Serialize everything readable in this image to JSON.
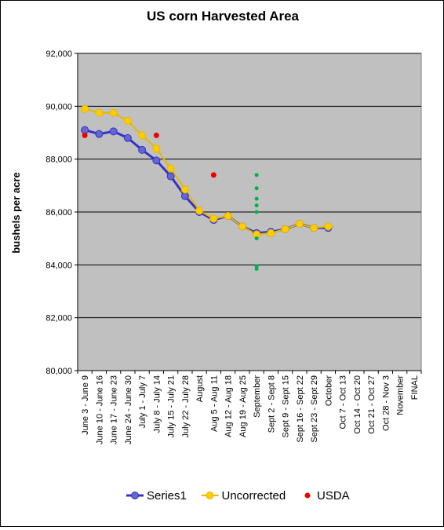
{
  "chart_data": {
    "type": "line",
    "title": "US corn Harvested Area",
    "ylabel": "bushels per acre",
    "xlabel": "",
    "ylim": [
      80000,
      92000
    ],
    "yticks": [
      "80,000",
      "82,000",
      "84,000",
      "86,000",
      "88,000",
      "90,000",
      "92,000"
    ],
    "ytick_values": [
      80000,
      82000,
      84000,
      86000,
      88000,
      90000,
      92000
    ],
    "grid": "horizontal",
    "legend_position": "bottom",
    "plot_background": "#c0c0c0",
    "categories": [
      "June 3 - June 9",
      "June 10 - June 16",
      "June 17 - June 23",
      "June 24 - June 30",
      "July 1 - July 7",
      "July 8 - July 14",
      "July 15 - July 21",
      "July 22 - July 28",
      "August",
      "Aug 5 - Aug 11",
      "Aug 12 - Aug 18",
      "Aug 19 - Aug 25",
      "September",
      "Sept 2 - Sept 8",
      "Sept 9 - Sept 15",
      "Sept 16 - Sept 22",
      "Sept 23 - Sept 29",
      "October",
      "Oct 7 - Oct 13",
      "Oct 14 - Oct 20",
      "Oct 21 - Oct 27",
      "Oct 28 - Nov 3",
      "November",
      "FINAL"
    ],
    "series": [
      {
        "name": "Series1",
        "color": "#3333cc",
        "marker_fill": "#6666cc",
        "line_width": 3,
        "values": [
          89100,
          88950,
          89050,
          88800,
          88350,
          87950,
          87350,
          86600,
          86000,
          85700,
          85850,
          85450,
          85200,
          85250,
          85350,
          85550,
          85400,
          85400,
          null,
          null,
          null,
          null,
          null,
          null
        ]
      },
      {
        "name": "Uncorrected",
        "color": "#e6b800",
        "marker_fill": "#ffcc00",
        "line_width": 2,
        "values": [
          89900,
          89750,
          89750,
          89450,
          88900,
          88400,
          87650,
          86850,
          86050,
          85750,
          85850,
          85450,
          85150,
          85200,
          85350,
          85550,
          85400,
          85450,
          null,
          null,
          null,
          null,
          null,
          null
        ]
      },
      {
        "name": "USDA",
        "color": "#ee0000",
        "type": "scatter",
        "points": [
          {
            "x": 0,
            "y": 88900
          },
          {
            "x": 5,
            "y": 88900
          },
          {
            "x": 9,
            "y": 87400
          }
        ]
      }
    ],
    "extra_points": {
      "color": "#00b050",
      "x": 12,
      "values": [
        87400,
        86900,
        86500,
        86250,
        86000,
        85000,
        83950,
        83850
      ]
    }
  }
}
